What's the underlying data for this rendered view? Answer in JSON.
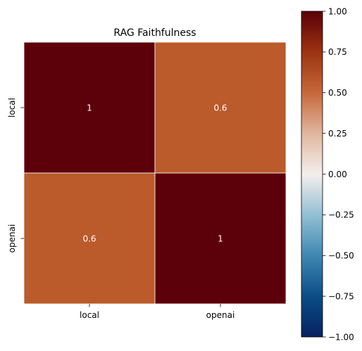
{
  "chart_data": {
    "type": "heatmap",
    "title": "RAG Faithfulness",
    "xlabel": "",
    "ylabel": "",
    "x_categories": [
      "local",
      "openai"
    ],
    "y_categories": [
      "local",
      "openai"
    ],
    "values": [
      [
        1,
        0.6
      ],
      [
        0.6,
        1
      ]
    ],
    "cell_labels": [
      [
        "1",
        "0.6"
      ],
      [
        "0.6",
        "1"
      ]
    ],
    "colorbar": {
      "vmin": -1.0,
      "vmax": 1.0,
      "ticks": [
        1.0,
        0.75,
        0.5,
        0.25,
        0.0,
        -0.25,
        -0.5,
        -0.75,
        -1.0
      ],
      "tick_labels": [
        "1.00",
        "0.75",
        "0.50",
        "0.25",
        "0.00",
        "−0.25",
        "−0.50",
        "−0.75",
        "−1.00"
      ],
      "colormap": "diverging blue-white-red",
      "colormap_stops": [
        {
          "value": -1.0,
          "color": "#05225e"
        },
        {
          "value": -0.75,
          "color": "#0b4d86"
        },
        {
          "value": -0.5,
          "color": "#3f88b2"
        },
        {
          "value": -0.25,
          "color": "#93bfd4"
        },
        {
          "value": 0.0,
          "color": "#f4efec"
        },
        {
          "value": 0.25,
          "color": "#e0b69e"
        },
        {
          "value": 0.5,
          "color": "#c6683a"
        },
        {
          "value": 0.75,
          "color": "#9b3211"
        },
        {
          "value": 1.0,
          "color": "#5c000a"
        }
      ]
    },
    "cell_colors": [
      [
        "#5c0009",
        "#bb5a2a"
      ],
      [
        "#bb5a2a",
        "#5c0009"
      ]
    ],
    "cell_text_color": "#ffffff",
    "grid": false
  }
}
